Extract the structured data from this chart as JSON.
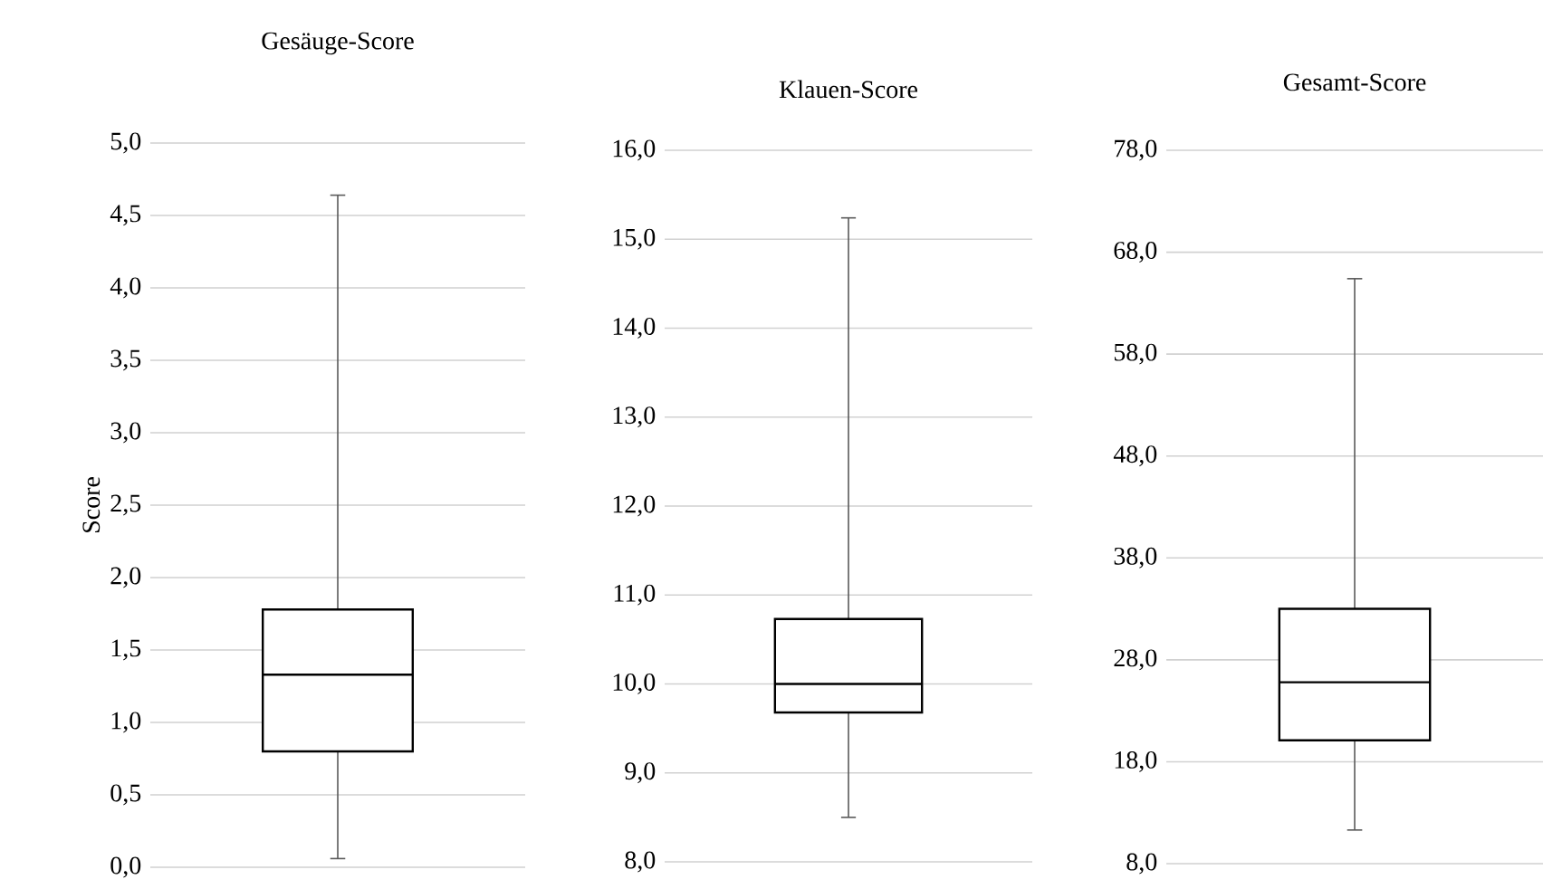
{
  "chart_data": [
    {
      "type": "box",
      "title": "Gesäuge-Score",
      "ylabel": "Score",
      "categories": [
        null
      ],
      "boxes": [
        {
          "low": 0.06,
          "q1": 0.8,
          "median": 1.33,
          "q3": 1.78,
          "high": 4.64
        }
      ],
      "ylim": [
        0,
        5
      ],
      "yticks": [
        {
          "value": 0,
          "label": "0,0"
        },
        {
          "value": 0.5,
          "label": "0,5"
        },
        {
          "value": 1,
          "label": "1,0"
        },
        {
          "value": 1.5,
          "label": "1,5"
        },
        {
          "value": 2,
          "label": "2,0"
        },
        {
          "value": 2.5,
          "label": "2,5"
        },
        {
          "value": 3,
          "label": "3,0"
        },
        {
          "value": 3.5,
          "label": "3,5"
        },
        {
          "value": 4,
          "label": "4,0"
        },
        {
          "value": 4.5,
          "label": "4,5"
        },
        {
          "value": 5,
          "label": "5,0"
        }
      ],
      "grid": "y",
      "tick_labels": "y"
    },
    {
      "type": "box",
      "title": "Klauen-Score",
      "categories": [
        null
      ],
      "boxes": [
        {
          "low": 8.5,
          "q1": 9.68,
          "median": 10.0,
          "q3": 10.73,
          "high": 15.24
        }
      ],
      "ylim": [
        8,
        16
      ],
      "yticks": [
        {
          "value": 8,
          "label": "8,0"
        },
        {
          "value": 9,
          "label": "9,0"
        },
        {
          "value": 10,
          "label": "10,0"
        },
        {
          "value": 11,
          "label": "11,0"
        },
        {
          "value": 12,
          "label": "12,0"
        },
        {
          "value": 13,
          "label": "13,0"
        },
        {
          "value": 14,
          "label": "14,0"
        },
        {
          "value": 15,
          "label": "15,0"
        },
        {
          "value": 16,
          "label": "16,0"
        }
      ],
      "grid": "y",
      "tick_labels": "y"
    },
    {
      "type": "box",
      "title": "Gesamt-Score",
      "categories": [
        null
      ],
      "boxes": [
        {
          "low": 11.3,
          "q1": 20.1,
          "median": 25.8,
          "q3": 33.0,
          "high": 65.4
        }
      ],
      "ylim": [
        8,
        78
      ],
      "yticks": [
        {
          "value": 8,
          "label": "8,0"
        },
        {
          "value": 18,
          "label": "18,0"
        },
        {
          "value": 28,
          "label": "28,0"
        },
        {
          "value": 38,
          "label": "38,0"
        },
        {
          "value": 48,
          "label": "48,0"
        },
        {
          "value": 58,
          "label": "58,0"
        },
        {
          "value": 68,
          "label": "68,0"
        },
        {
          "value": 78,
          "label": "78,0"
        }
      ],
      "grid": "y",
      "tick_labels": "y"
    }
  ]
}
